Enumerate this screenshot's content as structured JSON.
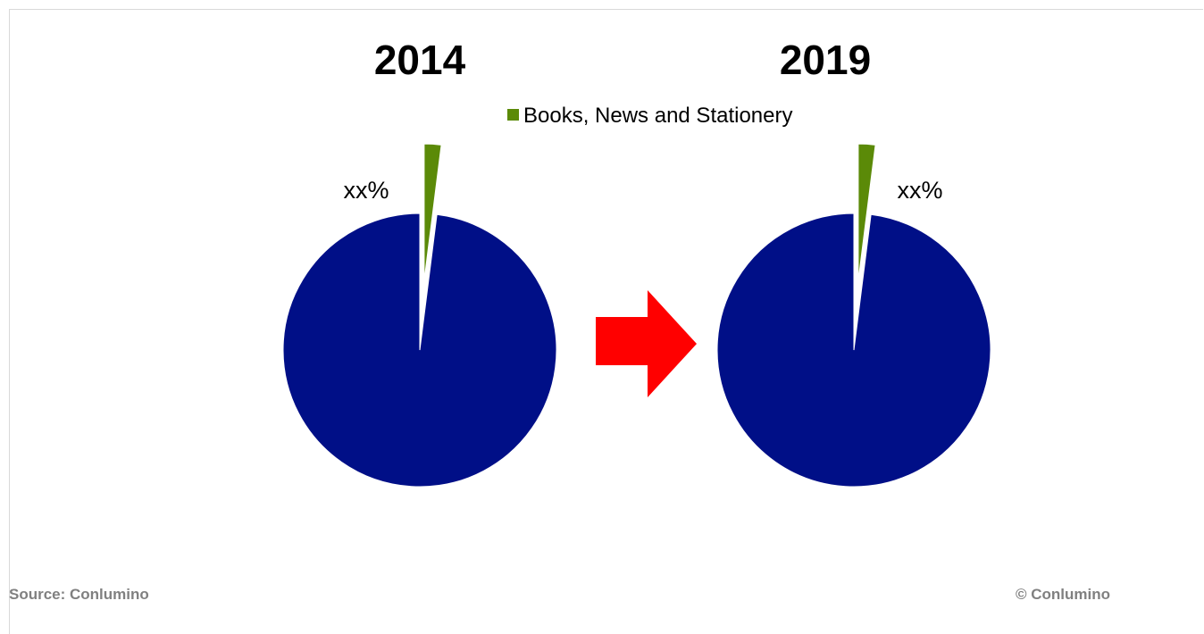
{
  "chart_data": {
    "type": "pie",
    "legend": {
      "position": "top",
      "entries": [
        {
          "name": "Books, News and Stationery",
          "color": "#5b8a08"
        }
      ]
    },
    "charts": [
      {
        "title": "2014",
        "slices": [
          {
            "name": "Books, News and Stationery",
            "share": 0.02,
            "exploded": true,
            "color": "#5b8a08"
          },
          {
            "name": "",
            "share": 0.98,
            "exploded": false,
            "color": "#000f87"
          }
        ],
        "data_label": "xx%"
      },
      {
        "title": "2019",
        "slices": [
          {
            "name": "Books, News and Stationery",
            "share": 0.02,
            "exploded": true,
            "color": "#5b8a08"
          },
          {
            "name": "",
            "share": 0.98,
            "exploded": false,
            "color": "#000f87"
          }
        ],
        "data_label": "xx%"
      }
    ],
    "arrow_color": "#ff0000"
  },
  "footer": {
    "source": "Source: Conlumino",
    "copyright": "© Conlumino"
  }
}
